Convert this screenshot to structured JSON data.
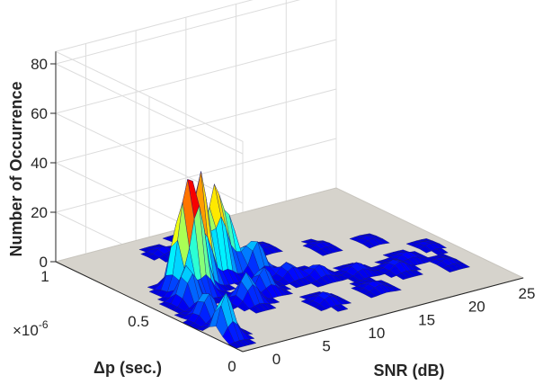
{
  "chart_data": {
    "type": "surface",
    "title": "",
    "xlabel": "SNR (dB)",
    "ylabel": "Δp (sec.)",
    "zlabel": "Number of Occurrence",
    "y_multiplier": "×10",
    "y_multiplier_exp": "-6",
    "x_ticks": [
      "0",
      "5",
      "10",
      "15",
      "20",
      "25"
    ],
    "y_ticks": [
      "0",
      "0.5",
      "1"
    ],
    "z_ticks": [
      "0",
      "20",
      "40",
      "60",
      "80"
    ],
    "xlim": [
      -3,
      25
    ],
    "ylim": [
      0,
      1
    ],
    "zlim": [
      0,
      85
    ],
    "grid": true,
    "colormap": "jet",
    "peaks": [
      {
        "x": 3.5,
        "y": 0.58,
        "z": 46
      },
      {
        "x": 2.0,
        "y": 0.52,
        "z": 40
      },
      {
        "x": 5.5,
        "y": 0.6,
        "z": 36
      },
      {
        "x": 1.0,
        "y": 0.55,
        "z": 29
      },
      {
        "x": 7.0,
        "y": 0.62,
        "z": 22
      },
      {
        "x": 8.5,
        "y": 0.55,
        "z": 14
      },
      {
        "x": 0.0,
        "y": 0.45,
        "z": 16
      },
      {
        "x": -1.0,
        "y": 0.3,
        "z": 12
      },
      {
        "x": -2.0,
        "y": 0.15,
        "z": 18
      },
      {
        "x": 4.0,
        "y": 0.35,
        "z": 12
      },
      {
        "x": 6.5,
        "y": 0.4,
        "z": 10
      },
      {
        "x": 10.0,
        "y": 0.45,
        "z": 6
      },
      {
        "x": 12.0,
        "y": 0.4,
        "z": 5
      },
      {
        "x": 15.0,
        "y": 0.35,
        "z": 4
      },
      {
        "x": 18.0,
        "y": 0.3,
        "z": 4
      },
      {
        "x": 20.0,
        "y": 0.35,
        "z": 3
      },
      {
        "x": 22.0,
        "y": 0.25,
        "z": 2
      },
      {
        "x": 5.0,
        "y": 0.85,
        "z": 3
      },
      {
        "x": 8.0,
        "y": 0.9,
        "z": 2
      },
      {
        "x": 12.0,
        "y": 0.7,
        "z": 2
      },
      {
        "x": 16.0,
        "y": 0.6,
        "z": 2
      },
      {
        "x": 20.0,
        "y": 0.55,
        "z": 2
      },
      {
        "x": 23.0,
        "y": 0.4,
        "z": 2
      },
      {
        "x": 14.0,
        "y": 0.2,
        "z": 3
      },
      {
        "x": 9.0,
        "y": 0.2,
        "z": 4
      }
    ]
  }
}
